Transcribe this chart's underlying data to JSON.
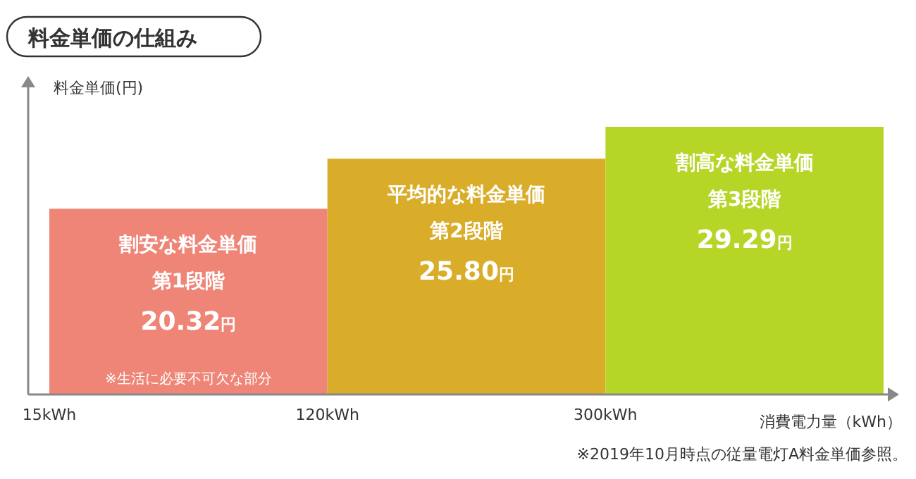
{
  "chart_data": {
    "type": "bar",
    "title": "料金単価の仕組み",
    "ylabel": "料金単価(円)",
    "xlabel": "消費電力量（kWh）",
    "categories": [
      "割安な料金単価",
      "平均的な料金単価",
      "割高な料金単価"
    ],
    "values": [
      20.32,
      25.8,
      29.29
    ],
    "value_labels": [
      "20.32円",
      "25.80円",
      "29.29円"
    ],
    "colors": [
      "#ee8577",
      "#d9ad2a",
      "#b5d627"
    ],
    "annotations": [
      "15kWh",
      "120kWh",
      "300kWh",
      "※生活に必要不可欠な部分",
      "※2019年10月時点の従量電灯A料金単価参照。",
      "第1段階",
      "第2段階",
      "第3段階"
    ]
  }
}
